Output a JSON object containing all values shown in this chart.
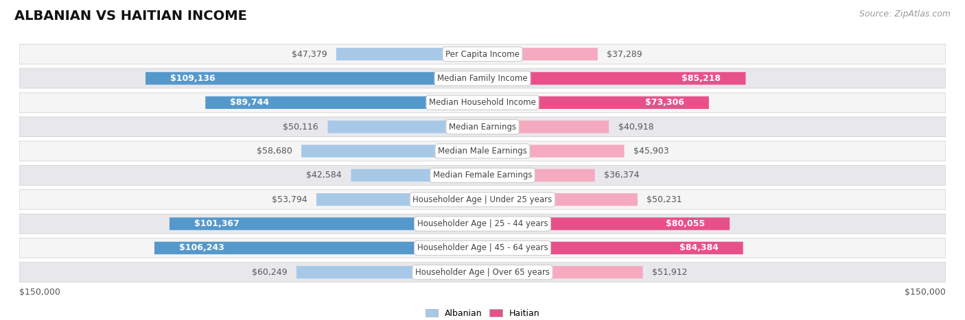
{
  "title": "ALBANIAN VS HAITIAN INCOME",
  "source": "Source: ZipAtlas.com",
  "categories": [
    "Per Capita Income",
    "Median Family Income",
    "Median Household Income",
    "Median Earnings",
    "Median Male Earnings",
    "Median Female Earnings",
    "Householder Age | Under 25 years",
    "Householder Age | 25 - 44 years",
    "Householder Age | 45 - 64 years",
    "Householder Age | Over 65 years"
  ],
  "albanian_values": [
    47379,
    109136,
    89744,
    50116,
    58680,
    42584,
    53794,
    101367,
    106243,
    60249
  ],
  "haitian_values": [
    37289,
    85218,
    73306,
    40918,
    45903,
    36374,
    50231,
    80055,
    84384,
    51912
  ],
  "albanian_labels": [
    "$47,379",
    "$109,136",
    "$89,744",
    "$50,116",
    "$58,680",
    "$42,584",
    "$53,794",
    "$101,367",
    "$106,243",
    "$60,249"
  ],
  "haitian_labels": [
    "$37,289",
    "$85,218",
    "$73,306",
    "$40,918",
    "$45,903",
    "$36,374",
    "$50,231",
    "$80,055",
    "$84,384",
    "$51,912"
  ],
  "albanian_color_light": "#a8c8e8",
  "albanian_color_dark": "#5599cc",
  "haitian_color_light": "#f5aac0",
  "haitian_color_dark": "#e8508a",
  "albanian_dark_threshold": 80000,
  "haitian_dark_threshold": 72000,
  "max_value": 150000,
  "x_label_left": "$150,000",
  "x_label_right": "$150,000",
  "legend_albanian": "Albanian",
  "legend_haitian": "Haitian",
  "background_color": "#ffffff",
  "row_color_light": "#f5f5f5",
  "row_color_dark": "#e8e8ec",
  "label_inside_color": "#ffffff",
  "label_outside_color": "#555555",
  "title_fontsize": 14,
  "source_fontsize": 9,
  "bar_label_fontsize": 9,
  "cat_label_fontsize": 8.5,
  "row_border_color": "#cccccc",
  "cat_box_color": "#ffffff",
  "cat_text_color": "#444444"
}
